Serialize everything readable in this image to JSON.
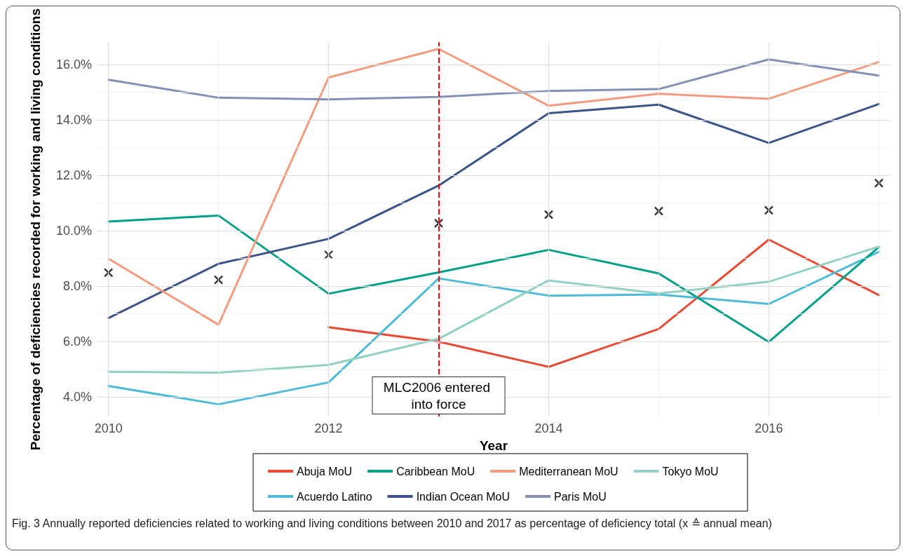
{
  "chart_data": {
    "type": "line",
    "xlabel": "Year",
    "ylabel": "Percentage of deficiencies recorded for working and living conditions",
    "x": [
      2010,
      2011,
      2012,
      2013,
      2014,
      2015,
      2016,
      2017
    ],
    "xlim": [
      2009.9,
      2017.1
    ],
    "xticks": [
      2010,
      {
        "value": 2011,
        "label": null
      },
      2012,
      {
        "value": 2013,
        "label": null
      },
      2014,
      {
        "value": 2015,
        "label": null
      },
      2016,
      {
        "value": 2017,
        "label": null
      }
    ],
    "ylim": [
      3.3,
      16.8
    ],
    "yticks": [
      {
        "value": 4,
        "label": "4.0%"
      },
      {
        "value": 5,
        "label": null
      },
      {
        "value": 6,
        "label": "6.0%"
      },
      {
        "value": 7,
        "label": null
      },
      {
        "value": 8,
        "label": "8.0%"
      },
      {
        "value": 9,
        "label": null
      },
      {
        "value": 10,
        "label": "10.0%"
      },
      {
        "value": 11,
        "label": null
      },
      {
        "value": 12,
        "label": "12.0%"
      },
      {
        "value": 13,
        "label": null
      },
      {
        "value": 14,
        "label": "14.0%"
      },
      {
        "value": 15,
        "label": null
      },
      {
        "value": 16,
        "label": "16.0%"
      }
    ],
    "grid": true,
    "legend": "bottom",
    "marker": "none",
    "line_style": "solid",
    "series": [
      {
        "name": "Abuja MoU",
        "color": "#e64b35",
        "values": [
          null,
          null,
          6.52,
          6.0,
          5.09,
          6.46,
          9.68,
          7.68
        ]
      },
      {
        "name": "Acuerdo Latino",
        "color": "#4dbbd5",
        "values": [
          4.4,
          3.74,
          4.53,
          8.28,
          7.66,
          7.7,
          7.36,
          9.24
        ]
      },
      {
        "name": "Caribbean MoU",
        "color": "#00a087",
        "values": [
          10.33,
          10.55,
          7.73,
          8.5,
          9.31,
          8.46,
          5.99,
          9.41
        ]
      },
      {
        "name": "Indian Ocean MoU",
        "color": "#3c5488",
        "values": [
          6.85,
          8.81,
          9.71,
          11.63,
          14.24,
          14.55,
          13.17,
          14.57
        ]
      },
      {
        "name": "Mediterranean MoU",
        "color": "#f39b7f",
        "values": [
          8.99,
          6.61,
          15.53,
          16.56,
          14.51,
          14.94,
          14.76,
          16.09
        ]
      },
      {
        "name": "Paris MoU",
        "color": "#8491b4",
        "values": [
          15.45,
          14.8,
          14.74,
          14.83,
          15.04,
          15.11,
          16.18,
          15.6
        ]
      },
      {
        "name": "Tokyo MoU",
        "color": "#91d1c2",
        "values": [
          4.91,
          4.88,
          5.16,
          6.1,
          8.21,
          7.74,
          8.16,
          9.43
        ]
      },
      {
        "type": "scatter",
        "marker": "cross",
        "color": "#000000",
        "values": [
          8.49,
          8.23,
          9.13,
          10.27,
          10.58,
          10.71,
          10.74,
          11.72
        ]
      }
    ],
    "ref_lines": [
      {
        "axis": "x",
        "value": 2013,
        "label": "MLC2006 entered into force",
        "color": "#ff0000",
        "line_style": "dashed"
      }
    ],
    "annotations": [
      "Fig. 3 Annually reported deficiencies related to working and living conditions between 2010 and 2017 as percentage of deficiency total (x ≙ annual mean)"
    ]
  }
}
